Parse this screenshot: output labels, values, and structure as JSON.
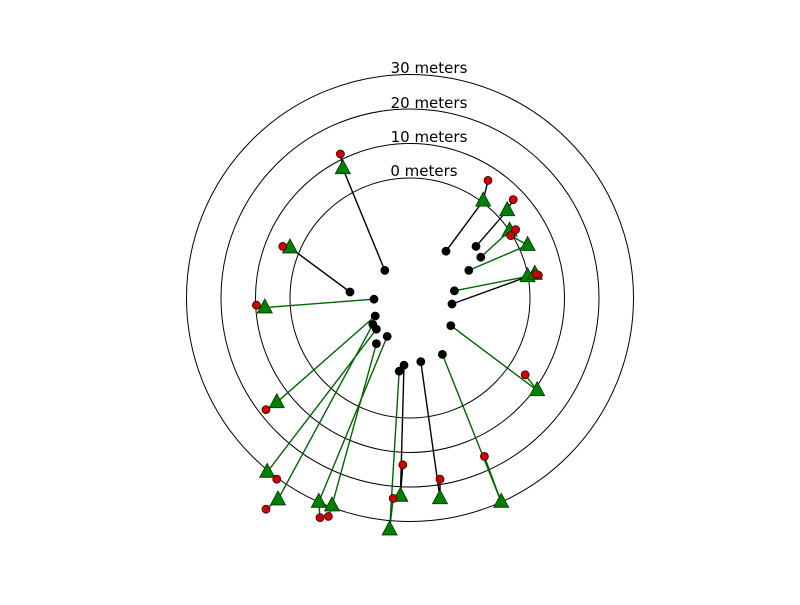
{
  "chart_data": {
    "type": "scatter",
    "title": "",
    "ring_labels": [
      "0 meters",
      "10 meters",
      "20 meters",
      "30 meters"
    ],
    "ring_distances": [
      0,
      10,
      20,
      30
    ],
    "colors": {
      "ring": "#000000",
      "start_marker": "#000000",
      "mid_marker": "#cc0000",
      "end_marker": "#008000",
      "link_green": "#006400",
      "link_black": "#000000"
    },
    "series": [
      {
        "name": "",
        "kind": "start",
        "marker": "circle"
      },
      {
        "name": "",
        "kind": "intermediate",
        "marker": "circle"
      },
      {
        "name": "",
        "kind": "final",
        "marker": "triangle"
      }
    ],
    "tracks": [
      {
        "start": [
          -2.1,
          2.3
        ],
        "mid": [
          -5.8,
          12.0
        ],
        "end": [
          -5.6,
          10.8
        ],
        "link": "black"
      },
      {
        "start": [
          3.0,
          3.9
        ],
        "mid": [
          6.5,
          9.8
        ],
        "end": [
          6.1,
          8.1
        ],
        "link": "black"
      },
      {
        "start": [
          5.5,
          4.3
        ],
        "mid": [
          8.6,
          8.2
        ],
        "end": [
          8.1,
          7.3
        ],
        "link": "black"
      },
      {
        "start": [
          5.9,
          3.4
        ],
        "mid": [
          8.8,
          5.7
        ],
        "end": [
          8.3,
          5.6
        ],
        "link": "green"
      },
      {
        "start": [
          4.9,
          2.3
        ],
        "mid": [
          8.4,
          5.2
        ],
        "end": [
          9.8,
          4.4
        ],
        "link": "green"
      },
      {
        "start": [
          3.7,
          0.6
        ],
        "mid": [
          10.7,
          1.9
        ],
        "end": [
          9.8,
          1.8
        ],
        "link": "green"
      },
      {
        "start": [
          3.5,
          -0.5
        ],
        "mid": [
          10.5,
          2.0
        ],
        "end": [
          10.4,
          2.0
        ],
        "link": "black"
      },
      {
        "start": [
          -5.0,
          0.5
        ],
        "mid": [
          -10.6,
          4.3
        ],
        "end": [
          -10.0,
          4.2
        ],
        "link": "black"
      },
      {
        "start": [
          -3.0,
          -0.1
        ],
        "mid": [
          -12.8,
          -0.6
        ],
        "end": [
          -12.1,
          -0.8
        ],
        "link": "green"
      },
      {
        "start": [
          3.4,
          -2.3
        ],
        "mid": [
          9.6,
          -6.4
        ],
        "end": [
          10.6,
          -7.7
        ],
        "link": "green"
      },
      {
        "start": [
          -2.9,
          -1.5
        ],
        "mid": [
          -12.0,
          -9.3
        ],
        "end": [
          -11.1,
          -8.7
        ],
        "link": "green"
      },
      {
        "start": [
          -3.1,
          -2.2
        ],
        "mid": [
          -12.0,
          -17.6
        ],
        "end": [
          -11.0,
          -16.8
        ],
        "link": "green"
      },
      {
        "start": [
          -2.8,
          -2.6
        ],
        "mid": [
          -11.1,
          -15.1
        ],
        "end": [
          -11.9,
          -14.5
        ],
        "link": "green"
      },
      {
        "start": [
          -1.9,
          -3.2
        ],
        "mid": [
          -7.5,
          -18.3
        ],
        "end": [
          -7.6,
          -17.0
        ],
        "link": "green"
      },
      {
        "start": [
          -2.8,
          -3.8
        ],
        "mid": [
          -6.8,
          -18.2
        ],
        "end": [
          -6.5,
          -17.3
        ],
        "link": "green"
      },
      {
        "start": [
          -0.9,
          -6.1
        ],
        "mid": [
          -1.4,
          -16.7
        ],
        "end": [
          -1.7,
          -19.3
        ],
        "link": "green"
      },
      {
        "start": [
          -0.5,
          -5.6
        ],
        "mid": [
          -0.6,
          -13.9
        ],
        "end": [
          -0.8,
          -16.5
        ],
        "link": "black"
      },
      {
        "start": [
          0.9,
          -5.3
        ],
        "mid": [
          2.5,
          -15.1
        ],
        "end": [
          2.5,
          -16.7
        ],
        "link": "black"
      },
      {
        "start": [
          2.7,
          -4.7
        ],
        "mid": [
          6.2,
          -13.2
        ],
        "end": [
          7.6,
          -17.0
        ],
        "link": "green"
      }
    ]
  }
}
